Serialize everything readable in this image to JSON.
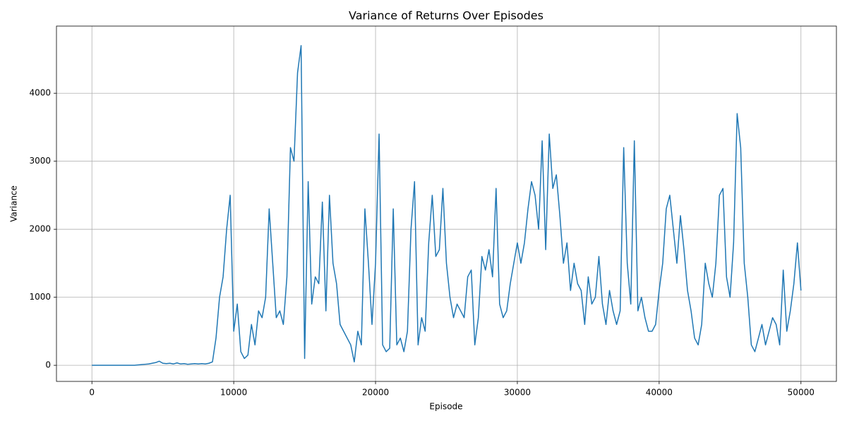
{
  "chart_data": {
    "type": "line",
    "title": "Variance of Returns Over Episodes",
    "xlabel": "Episode",
    "ylabel": "Variance",
    "x": [
      0,
      250,
      500,
      750,
      1000,
      1250,
      1500,
      1750,
      2000,
      2250,
      2500,
      2750,
      3000,
      3250,
      3500,
      3750,
      4000,
      4250,
      4500,
      4750,
      5000,
      5250,
      5500,
      5750,
      6000,
      6250,
      6500,
      6750,
      7000,
      7250,
      7500,
      7750,
      8000,
      8250,
      8500,
      8750,
      9000,
      9250,
      9500,
      9750,
      10000,
      10250,
      10500,
      10750,
      11000,
      11250,
      11500,
      11750,
      12000,
      12250,
      12500,
      12750,
      13000,
      13250,
      13500,
      13750,
      14000,
      14250,
      14500,
      14750,
      15000,
      15250,
      15500,
      15750,
      16000,
      16250,
      16500,
      16750,
      17000,
      17250,
      17500,
      17750,
      18000,
      18250,
      18500,
      18750,
      19000,
      19250,
      19500,
      19750,
      20000,
      20250,
      20500,
      20750,
      21000,
      21250,
      21500,
      21750,
      22000,
      22250,
      22500,
      22750,
      23000,
      23250,
      23500,
      23750,
      24000,
      24250,
      24500,
      24750,
      25000,
      25250,
      25500,
      25750,
      26000,
      26250,
      26500,
      26750,
      27000,
      27250,
      27500,
      27750,
      28000,
      28250,
      28500,
      28750,
      29000,
      29250,
      29500,
      29750,
      30000,
      30250,
      30500,
      30750,
      31000,
      31250,
      31500,
      31750,
      32000,
      32250,
      32500,
      32750,
      33000,
      33250,
      33500,
      33750,
      34000,
      34250,
      34500,
      34750,
      35000,
      35250,
      35500,
      35750,
      36000,
      36250,
      36500,
      36750,
      37000,
      37250,
      37500,
      37750,
      38000,
      38250,
      38500,
      38750,
      39000,
      39250,
      39500,
      39750,
      40000,
      40250,
      40500,
      40750,
      41000,
      41250,
      41500,
      41750,
      42000,
      42250,
      42500,
      42750,
      43000,
      43250,
      43500,
      43750,
      44000,
      44250,
      44500,
      44750,
      45000,
      45250,
      45500,
      45750,
      46000,
      46250,
      46500,
      46750,
      47000,
      47250,
      47500,
      47750,
      48000,
      48250,
      48500,
      48750,
      49000,
      49250,
      49500,
      49750,
      50000
    ],
    "values": [
      0,
      0,
      0,
      0,
      0,
      0,
      0,
      0,
      0,
      0,
      0,
      0,
      0,
      5,
      10,
      15,
      20,
      30,
      40,
      60,
      30,
      25,
      30,
      20,
      35,
      20,
      25,
      15,
      20,
      25,
      20,
      25,
      20,
      30,
      50,
      400,
      1000,
      1300,
      2000,
      2500,
      500,
      900,
      200,
      100,
      150,
      600,
      300,
      800,
      700,
      1000,
      2300,
      1500,
      700,
      800,
      600,
      1300,
      3200,
      3000,
      4300,
      4700,
      100,
      2700,
      900,
      1300,
      1200,
      2400,
      800,
      2500,
      1500,
      1200,
      600,
      500,
      400,
      300,
      50,
      500,
      300,
      2300,
      1500,
      600,
      1500,
      3400,
      300,
      200,
      250,
      2300,
      300,
      400,
      200,
      500,
      2000,
      2700,
      300,
      700,
      500,
      1800,
      2500,
      1600,
      1700,
      2600,
      1500,
      1000,
      700,
      900,
      800,
      700,
      1300,
      1400,
      300,
      700,
      1600,
      1400,
      1700,
      1300,
      2600,
      900,
      700,
      800,
      1200,
      1500,
      1800,
      1500,
      1800,
      2300,
      2700,
      2500,
      2000,
      3300,
      1700,
      3400,
      2600,
      2800,
      2200,
      1500,
      1800,
      1100,
      1500,
      1200,
      1100,
      600,
      1300,
      900,
      1000,
      1600,
      900,
      600,
      1100,
      800,
      600,
      800,
      3200,
      1500,
      900,
      3300,
      800,
      1000,
      700,
      500,
      500,
      600,
      1100,
      1500,
      2300,
      2500,
      2000,
      1500,
      2200,
      1700,
      1100,
      800,
      400,
      300,
      600,
      1500,
      1200,
      1000,
      1500,
      2500,
      2600,
      1300,
      1000,
      1800,
      3700,
      3200,
      1500,
      1000,
      300,
      200,
      400,
      600,
      300,
      500,
      700,
      600,
      300,
      1400,
      500,
      800,
      1200,
      1800,
      1100
    ],
    "color": "#1f77b4",
    "xlim": [
      -2500,
      52500
    ],
    "ylim": [
      -237,
      4987
    ],
    "xticks": [
      0,
      10000,
      20000,
      30000,
      40000,
      50000
    ],
    "yticks": [
      0,
      1000,
      2000,
      3000,
      4000
    ],
    "grid": true
  }
}
